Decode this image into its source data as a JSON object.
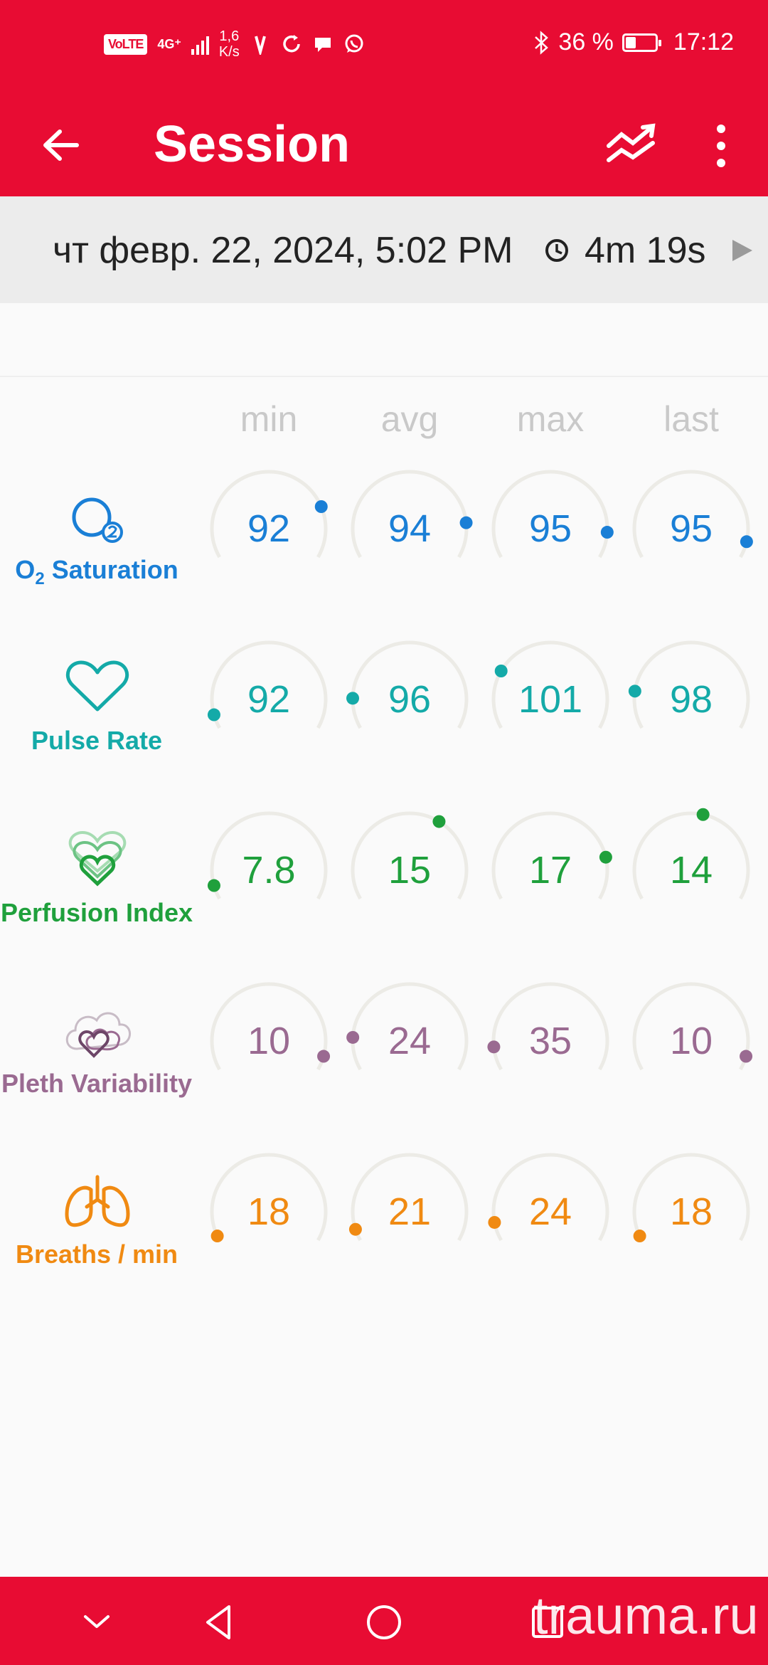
{
  "status_bar": {
    "network_badge": "VoLTE",
    "network_type": "4G⁺",
    "speed_value": "1,6",
    "speed_unit": "K/s",
    "battery_percent": "36 %",
    "battery_level": 0.36,
    "time": "17:12",
    "icons": [
      "signal-icon",
      "v-app-icon",
      "sync-icon",
      "chat-bubble-icon",
      "whatsapp-icon",
      "bluetooth-icon",
      "battery-icon"
    ]
  },
  "app_bar": {
    "title": "Session",
    "icons": [
      "back-arrow-icon",
      "trend-icon",
      "more-vert-icon"
    ]
  },
  "session": {
    "date": "чт февр. 22, 2024, 5:02 PM",
    "duration": "4m 19s",
    "icons": [
      "clock-icon",
      "play-icon"
    ]
  },
  "columns": [
    "min",
    "avg",
    "max",
    "last"
  ],
  "metrics": [
    {
      "label": "Saturation",
      "label_prefix": "O",
      "label_sub": "2",
      "color": "#1a7fd6",
      "icon": "o2-icon",
      "values": [
        "92",
        "94",
        "95",
        "95"
      ],
      "levels": [
        0.78,
        0.85,
        0.89,
        0.93
      ]
    },
    {
      "label": "Pulse Rate",
      "color": "#14aaa8",
      "icon": "heart-icon",
      "values": [
        "92",
        "96",
        "101",
        "98"
      ],
      "levels": [
        0.06,
        0.13,
        0.25,
        0.16
      ]
    },
    {
      "label": "Perfusion Index",
      "color": "#1fa03c",
      "icon": "perfusion-icon",
      "values": [
        "7.8",
        "15",
        "17",
        "14"
      ],
      "levels": [
        0.06,
        0.63,
        0.82,
        0.55
      ]
    },
    {
      "label": "Pleth Variability",
      "color": "#9a6a91",
      "icon": "pleth-icon",
      "values": [
        "10",
        "24",
        "35",
        "10"
      ],
      "levels": [
        0.94,
        0.14,
        0.1,
        0.94
      ]
    },
    {
      "label": "Breaths / min",
      "color": "#f08a12",
      "icon": "lungs-icon",
      "values": [
        "18",
        "21",
        "24",
        "18"
      ],
      "levels": [
        0.02,
        0.05,
        0.08,
        0.02
      ]
    }
  ],
  "nav_bar": {
    "icons": [
      "collapse-icon",
      "back-triangle-icon",
      "home-circle-icon",
      "recents-square-icon"
    ]
  },
  "watermark": "trauma.ru"
}
